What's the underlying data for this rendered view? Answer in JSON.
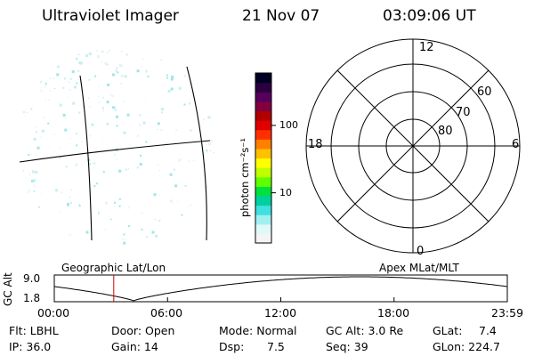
{
  "header": {
    "instrument": "Ultraviolet Imager",
    "date": "21 Nov 07",
    "time": "03:09:06 UT"
  },
  "colorbar": {
    "unit_label": "photon cm⁻²s⁻¹",
    "ticks": [
      {
        "label": "100",
        "value": 100
      },
      {
        "label": "10",
        "value": 10
      }
    ],
    "colors": [
      "#000022",
      "#2a0040",
      "#55005a",
      "#800040",
      "#b00000",
      "#e00000",
      "#ff3000",
      "#ff8000",
      "#ffc000",
      "#ffff00",
      "#c0ff00",
      "#60ff00",
      "#00e040",
      "#00d0a0",
      "#40e0e0",
      "#a0f0f0",
      "#e0f8f8",
      "#f4f4f4"
    ]
  },
  "polar_plot": {
    "mlt_labels": {
      "top": "12",
      "bottom": "0",
      "left": "18",
      "right": "6"
    },
    "lat_labels": [
      {
        "label": "60",
        "value": 60
      },
      {
        "label": "70",
        "value": 70
      },
      {
        "label": "80",
        "value": 80
      }
    ]
  },
  "altitude_plot": {
    "left_caption": "Geographic Lat/Lon",
    "right_caption": "Apex MLat/MLT",
    "ylabel": "GC Alt",
    "y_ticks": [
      "9.0",
      "1.8"
    ],
    "y_values": [
      9.0,
      1.8
    ],
    "x_ticks": [
      "00:00",
      "06:00",
      "12:00",
      "18:00",
      "23:59"
    ],
    "current_time_hours": 3.15,
    "line_color": "#cc0000"
  },
  "status": {
    "flt": "Flt: LBHL",
    "ip": "IP: 36.0",
    "door": "Door: Open",
    "gain": "Gain: 14",
    "mode": "Mode: Normal",
    "dsp_label": "Dsp:",
    "dsp_value": "7.5",
    "gc_alt": "GC Alt: 3.0 Re",
    "seq": "Seq: 39",
    "glat_label": "GLat:",
    "glat_value": "7.4",
    "glon": "GLon: 224.7"
  }
}
